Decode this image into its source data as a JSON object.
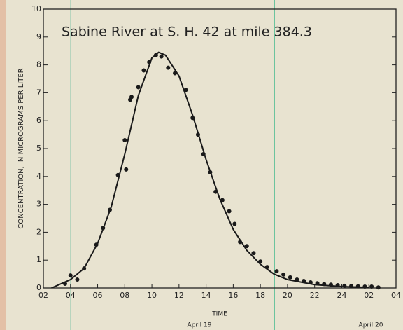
{
  "chart_data": {
    "type": "scatter",
    "title": "Sabine River at S. H. 42 at mile 384.3",
    "x_label": "TIME",
    "y_label": "CONCENTRATION, IN MICROGRAMS PER LITER",
    "annotations": [
      "April 19",
      "April 20"
    ],
    "color": "#1a1a1a",
    "xlim": [
      2,
      28
    ],
    "xticks": [
      {
        "value": 2,
        "label": "02"
      },
      {
        "value": 4,
        "label": "04"
      },
      {
        "value": 6,
        "label": "06"
      },
      {
        "value": 8,
        "label": "08"
      },
      10,
      12,
      14,
      16,
      18,
      20,
      22,
      24,
      {
        "value": 26,
        "label": "02"
      },
      {
        "value": 28,
        "label": "04"
      }
    ],
    "ylim": [
      0,
      10
    ],
    "yticks": [
      0,
      1,
      2,
      3,
      4,
      5,
      6,
      7,
      8,
      9,
      10
    ],
    "points": {
      "x": [
        3.6,
        4.0,
        4.5,
        5.0,
        5.9,
        6.4,
        6.9,
        7.5,
        8.0,
        8.1,
        8.4,
        8.5,
        9.0,
        9.4,
        9.8,
        10.3,
        10.7,
        11.2,
        11.7,
        12.5,
        13.0,
        13.4,
        13.8,
        14.3,
        14.7,
        15.2,
        15.7,
        16.1,
        16.5,
        17.0,
        17.5,
        18.0,
        18.5,
        19.2,
        19.7,
        20.2,
        20.7,
        21.2,
        21.7,
        22.2,
        22.7,
        23.2,
        23.7,
        24.2,
        24.7,
        25.2,
        25.7,
        26.2,
        26.7
      ],
      "y": [
        0.15,
        0.45,
        0.3,
        0.7,
        1.55,
        2.15,
        2.8,
        4.05,
        5.3,
        4.25,
        6.75,
        6.85,
        7.2,
        7.8,
        8.1,
        8.35,
        8.3,
        7.9,
        7.7,
        7.1,
        6.1,
        5.5,
        4.8,
        4.15,
        3.45,
        3.15,
        2.75,
        2.3,
        1.65,
        1.5,
        1.25,
        0.95,
        0.75,
        0.6,
        0.48,
        0.38,
        0.3,
        0.25,
        0.2,
        0.17,
        0.14,
        0.12,
        0.1,
        0.08,
        0.07,
        0.06,
        0.05,
        0.05,
        0.02
      ]
    },
    "curve": {
      "x": [
        2.6,
        4,
        5,
        6,
        7,
        8,
        9,
        10,
        10.5,
        11,
        12,
        13,
        14,
        15,
        16,
        17,
        18,
        19,
        20,
        22,
        24,
        26
      ],
      "y": [
        0,
        0.3,
        0.7,
        1.6,
        2.9,
        4.8,
        6.9,
        8.25,
        8.45,
        8.35,
        7.6,
        6.2,
        4.6,
        3.2,
        2.1,
        1.35,
        0.85,
        0.5,
        0.3,
        0.12,
        0.05,
        0.02
      ]
    }
  }
}
